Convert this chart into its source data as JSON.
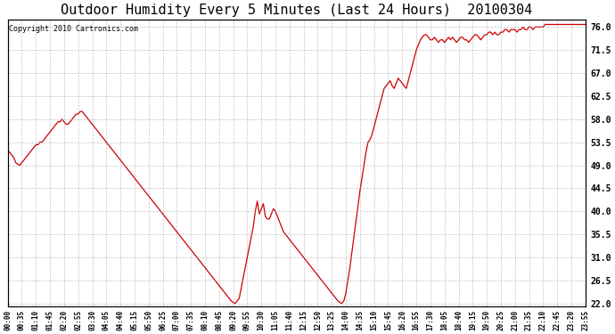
{
  "title": "Outdoor Humidity Every 5 Minutes (Last 24 Hours)  20100304",
  "copyright": "Copyright 2010 Cartronics.com",
  "y_ticks": [
    22.0,
    26.5,
    31.0,
    35.5,
    40.0,
    44.5,
    49.0,
    53.5,
    58.0,
    62.5,
    67.0,
    71.5,
    76.0
  ],
  "ylim": [
    21.5,
    77.5
  ],
  "line_color": "#cc0000",
  "bg_color": "#ffffff",
  "grid_color": "#aaaaaa",
  "title_fontsize": 11,
  "x_tick_labels": [
    "00:00",
    "00:35",
    "01:10",
    "01:45",
    "02:20",
    "02:55",
    "03:30",
    "04:05",
    "04:40",
    "05:15",
    "05:50",
    "06:25",
    "07:00",
    "07:35",
    "08:10",
    "08:45",
    "09:20",
    "09:55",
    "10:30",
    "11:05",
    "11:40",
    "12:15",
    "12:50",
    "13:25",
    "14:00",
    "14:35",
    "15:10",
    "15:45",
    "16:20",
    "16:55",
    "17:30",
    "18:05",
    "18:40",
    "19:15",
    "19:50",
    "20:25",
    "21:00",
    "21:35",
    "22:10",
    "22:45",
    "23:20",
    "23:55"
  ],
  "humidity_data": [
    52.0,
    51.5,
    51.0,
    50.5,
    49.5,
    49.2,
    49.0,
    49.5,
    50.0,
    50.5,
    51.0,
    51.5,
    52.0,
    52.5,
    53.0,
    53.0,
    53.5,
    53.5,
    54.0,
    54.5,
    55.0,
    55.5,
    56.0,
    56.5,
    57.0,
    57.5,
    57.5,
    58.0,
    57.5,
    57.0,
    57.0,
    57.5,
    58.0,
    58.5,
    59.0,
    59.0,
    59.5,
    59.5,
    59.0,
    58.5,
    58.0,
    57.5,
    57.0,
    56.5,
    56.0,
    55.5,
    55.0,
    54.5,
    54.0,
    53.5,
    53.0,
    52.5,
    52.0,
    51.5,
    51.0,
    50.5,
    50.0,
    49.5,
    49.0,
    48.5,
    48.0,
    47.5,
    47.0,
    46.5,
    46.0,
    45.5,
    45.0,
    44.5,
    44.0,
    43.5,
    43.0,
    42.5,
    42.0,
    41.5,
    41.0,
    40.5,
    40.0,
    39.5,
    39.0,
    38.5,
    38.0,
    37.5,
    37.0,
    36.5,
    36.0,
    35.5,
    35.0,
    34.5,
    34.0,
    33.5,
    33.0,
    32.5,
    32.0,
    31.5,
    31.0,
    30.5,
    30.0,
    29.5,
    29.0,
    28.5,
    28.0,
    27.5,
    27.0,
    26.5,
    26.0,
    25.5,
    25.0,
    24.5,
    24.0,
    23.5,
    23.0,
    22.5,
    22.2,
    22.0,
    22.5,
    23.0,
    25.0,
    27.0,
    29.0,
    31.0,
    33.0,
    35.0,
    37.0,
    40.0,
    42.0,
    39.5,
    40.5,
    41.5,
    39.0,
    38.5,
    38.5,
    39.5,
    40.5,
    40.0,
    39.0,
    38.0,
    37.0,
    36.0,
    35.5,
    35.0,
    34.5,
    34.0,
    33.5,
    33.0,
    32.5,
    32.0,
    31.5,
    31.0,
    30.5,
    30.0,
    29.5,
    29.0,
    28.5,
    28.0,
    27.5,
    27.0,
    26.5,
    26.0,
    25.5,
    25.0,
    24.5,
    24.0,
    23.5,
    23.0,
    22.5,
    22.2,
    22.0,
    22.5,
    24.0,
    26.5,
    29.0,
    32.0,
    35.0,
    38.0,
    41.0,
    44.0,
    46.5,
    49.0,
    51.5,
    53.5,
    54.0,
    55.0,
    56.5,
    58.0,
    59.5,
    61.0,
    62.5,
    64.0,
    64.5,
    65.0,
    65.5,
    64.5,
    64.0,
    65.0,
    66.0,
    65.5,
    65.0,
    64.5,
    64.0,
    65.5,
    67.0,
    68.5,
    70.0,
    71.5,
    72.5,
    73.5,
    74.0,
    74.5,
    74.5,
    74.0,
    73.5,
    73.5,
    74.0,
    73.5,
    73.0,
    73.5,
    73.5,
    73.0,
    73.5,
    74.0,
    73.5,
    74.0,
    73.5,
    73.0,
    73.5,
    74.0,
    74.0,
    73.5,
    73.5,
    73.0,
    73.5,
    74.0,
    74.5,
    74.5,
    74.0,
    73.5,
    74.0,
    74.5,
    74.5,
    75.0,
    75.0,
    74.5,
    75.0,
    74.5,
    74.5,
    75.0,
    75.0,
    75.5,
    75.5,
    75.0,
    75.5,
    75.5,
    75.5,
    75.0,
    75.5,
    75.5,
    76.0,
    75.5,
    75.5,
    76.0,
    76.0,
    75.5,
    76.0,
    76.0,
    76.0,
    76.0,
    76.0,
    76.5,
    76.5,
    76.5,
    76.5,
    76.5,
    76.5,
    76.5,
    76.5,
    76.5,
    76.5,
    76.5,
    76.5,
    76.5,
    76.5,
    76.5,
    76.5,
    76.5,
    76.5,
    76.5,
    76.5,
    76.5
  ]
}
